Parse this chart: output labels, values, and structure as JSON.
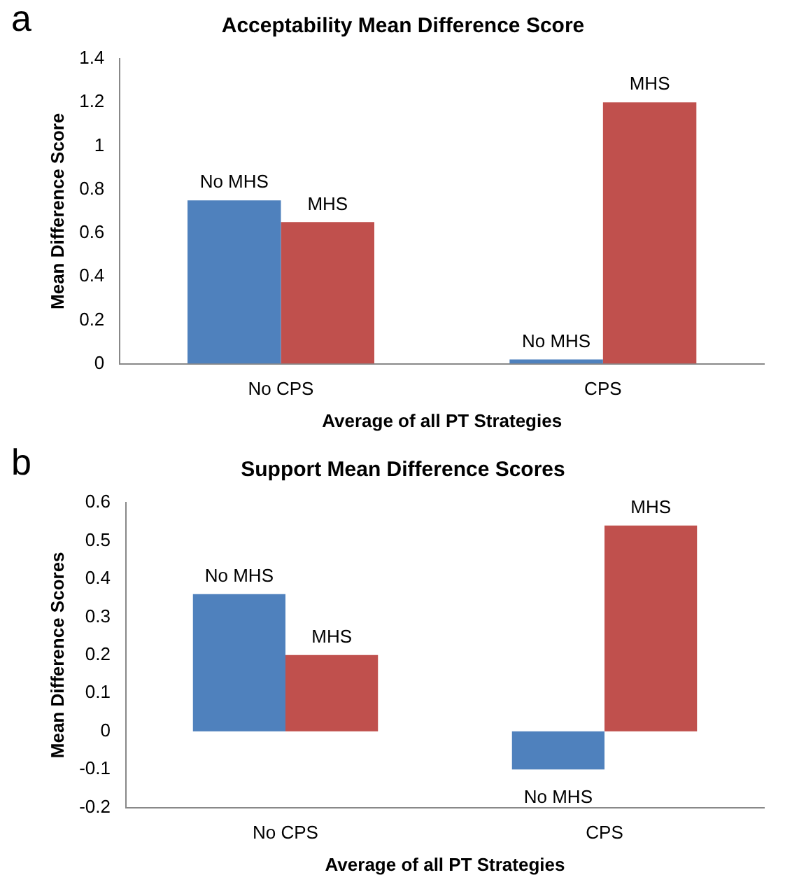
{
  "chart_data": [
    {
      "type": "bar",
      "title": "Acceptability Mean Difference Score",
      "xlabel": "Average of all PT Strategies",
      "ylabel": "Mean Difference Score",
      "categories": [
        "No CPS",
        "CPS"
      ],
      "series": [
        {
          "name": "No MHS",
          "color": "#4f81bd",
          "values": [
            0.75,
            0.02
          ]
        },
        {
          "name": "MHS",
          "color": "#c0504d",
          "values": [
            0.65,
            1.2
          ]
        }
      ],
      "ylim": [
        0,
        1.4
      ],
      "yticks": [
        0,
        0.2,
        0.4,
        0.6,
        0.8,
        1,
        1.2,
        1.4
      ],
      "grid": false,
      "annotations": [
        "a"
      ]
    },
    {
      "type": "bar",
      "title": "Support Mean Difference Scores",
      "xlabel": "Average of all PT Strategies",
      "ylabel": "Mean Difference Scores",
      "categories": [
        "No CPS",
        "CPS"
      ],
      "series": [
        {
          "name": "No MHS",
          "color": "#4f81bd",
          "values": [
            0.36,
            -0.1
          ]
        },
        {
          "name": "MHS",
          "color": "#c0504d",
          "values": [
            0.2,
            0.54
          ]
        }
      ],
      "ylim": [
        -0.2,
        0.6
      ],
      "yticks": [
        -0.2,
        -0.1,
        0,
        0.1,
        0.2,
        0.3,
        0.4,
        0.5,
        0.6
      ],
      "grid": false,
      "annotations": [
        "b"
      ]
    }
  ]
}
